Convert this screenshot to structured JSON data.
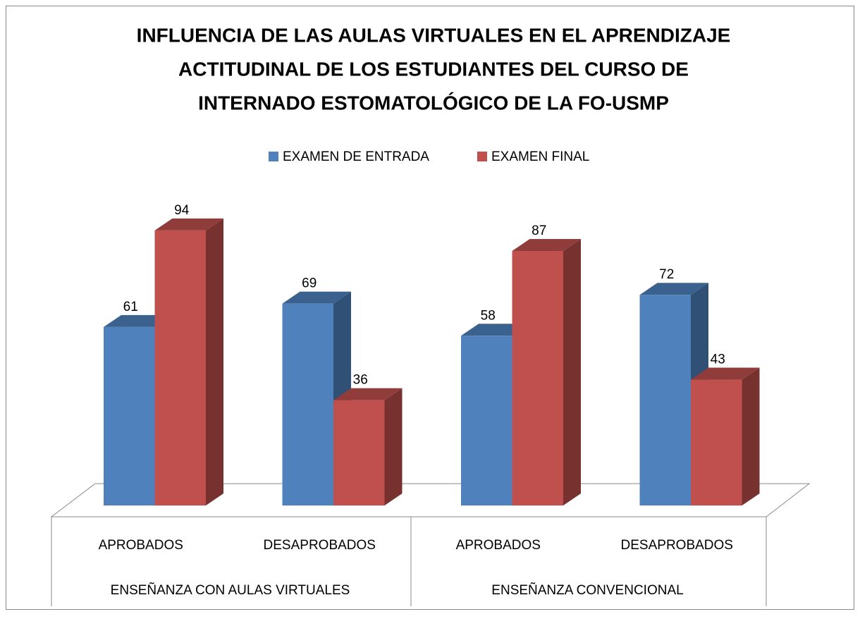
{
  "chart_data": {
    "type": "bar3d",
    "title": [
      "INFLUENCIA DE LAS AULAS VIRTUALES EN EL APRENDIZAJE",
      "ACTITUDINAL DE LOS ESTUDIANTES DEL CURSO DE",
      "INTERNADO ESTOMATOLÓGICO DE LA FO-USMP"
    ],
    "categories": [
      "APROBADOS",
      "DESAPROBADOS",
      "APROBADOS",
      "DESAPROBADOS"
    ],
    "groups": [
      "ENSEÑANZA CON AULAS VIRTUALES",
      "ENSEÑANZA CONVENCIONAL"
    ],
    "series": [
      {
        "name": "EXAMEN DE ENTRADA",
        "color": "#4f81bd",
        "values": [
          61,
          69,
          58,
          72
        ]
      },
      {
        "name": "EXAMEN FINAL",
        "color": "#c0504d",
        "values": [
          94,
          36,
          87,
          43
        ]
      }
    ],
    "legend": "top"
  }
}
